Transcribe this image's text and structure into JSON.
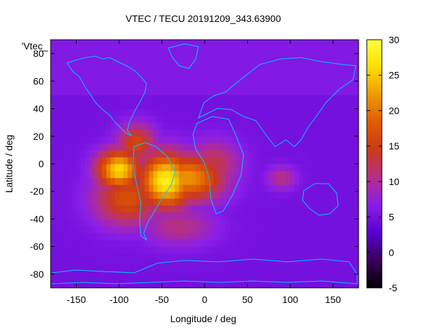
{
  "chart_data": {
    "type": "heatmap",
    "title": "VTEC / TECU 20191209_343.63900",
    "xlabel": "Longitude / deg",
    "ylabel": "Latitude / deg",
    "xlim": [
      -180,
      180
    ],
    "ylim": [
      -90,
      90
    ],
    "x_ticks": [
      -150,
      -100,
      -50,
      0,
      50,
      100,
      150
    ],
    "y_ticks": [
      -80,
      -60,
      -40,
      -20,
      0,
      20,
      40,
      60,
      80
    ],
    "colorbar": {
      "range": [
        -5,
        30
      ],
      "ticks": [
        -5,
        0,
        5,
        10,
        15,
        20,
        25,
        30
      ],
      "palette": [
        "#000000",
        "#3a005a",
        "#5a00d0",
        "#8a1ee8",
        "#b42f8a",
        "#cc3a1a",
        "#e05a00",
        "#ee9a00",
        "#ffdd00",
        "#ffff40"
      ]
    },
    "legend_key": "'Vtec_",
    "background_level": 5,
    "hotspots": [
      {
        "name": "south-america-peak",
        "lon": -45,
        "lat": -12,
        "value": 28
      },
      {
        "name": "west-anomaly-peak",
        "lon": -100,
        "lat": -4,
        "value": 26
      },
      {
        "name": "south-atlantic-band",
        "lon": -20,
        "lat": -10,
        "value": 22
      },
      {
        "name": "pacific-band",
        "lon": -90,
        "lat": -25,
        "value": 17
      },
      {
        "name": "central-america",
        "lon": -80,
        "lat": 15,
        "value": 16
      },
      {
        "name": "africa-west",
        "lon": 10,
        "lat": 0,
        "value": 13
      },
      {
        "name": "indian-ocean",
        "lon": 90,
        "lat": -10,
        "value": 11
      },
      {
        "name": "southern-atlantic-tail",
        "lon": -30,
        "lat": -45,
        "value": 11
      }
    ],
    "coastline_color": "#00c8ff"
  }
}
